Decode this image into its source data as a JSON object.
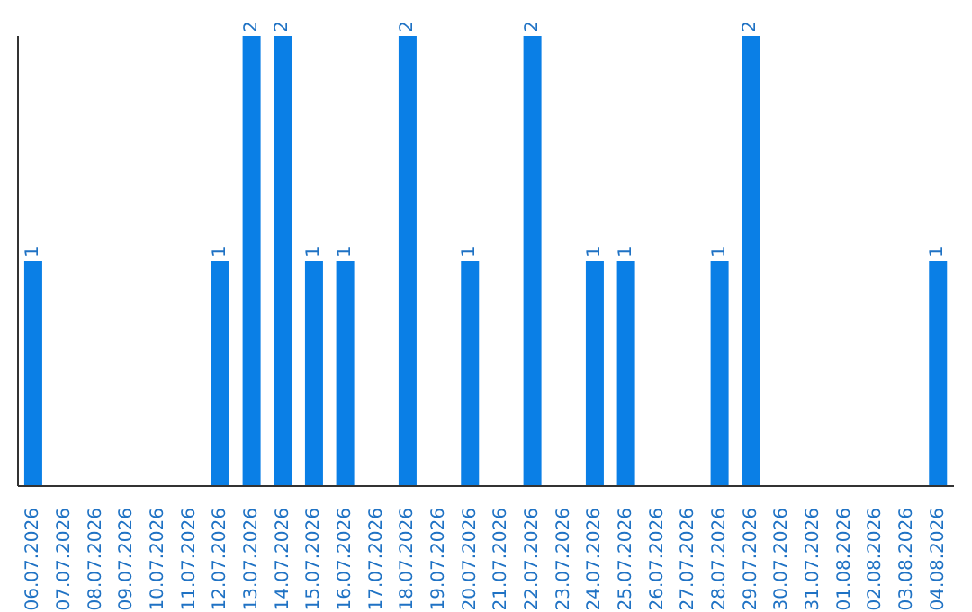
{
  "chart_data": {
    "type": "bar",
    "categories": [
      "06.07.2026",
      "07.07.2026",
      "08.07.2026",
      "09.07.2026",
      "10.07.2026",
      "11.07.2026",
      "12.07.2026",
      "13.07.2026",
      "14.07.2026",
      "15.07.2026",
      "16.07.2026",
      "17.07.2026",
      "18.07.2026",
      "19.07.2026",
      "20.07.2026",
      "21.07.2026",
      "22.07.2026",
      "23.07.2026",
      "24.07.2026",
      "25.07.2026",
      "26.07.2026",
      "27.07.2026",
      "28.07.2026",
      "29.07.2026",
      "30.07.2026",
      "31.07.2026",
      "01.08.2026",
      "02.08.2026",
      "03.08.2026",
      "04.08.2026"
    ],
    "values": [
      1,
      0,
      0,
      0,
      0,
      0,
      1,
      2,
      2,
      1,
      1,
      0,
      2,
      0,
      1,
      0,
      2,
      0,
      1,
      1,
      0,
      0,
      1,
      2,
      0,
      0,
      0,
      0,
      0,
      1
    ],
    "value_labels": [
      "1",
      null,
      null,
      null,
      null,
      null,
      "1",
      "2",
      "2",
      "1",
      "1",
      null,
      "2",
      null,
      "1",
      null,
      "2",
      null,
      "1",
      "1",
      null,
      null,
      "1",
      "2",
      null,
      null,
      null,
      null,
      null,
      "1"
    ],
    "color": "#0a7fe6",
    "ylim": [
      0,
      2
    ],
    "tick_labels": "x",
    "grid": false,
    "legend": false
  }
}
